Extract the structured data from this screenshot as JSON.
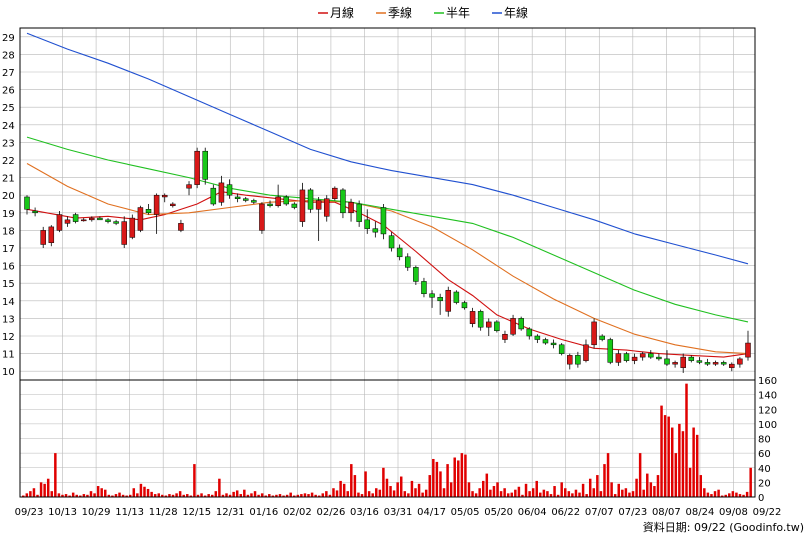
{
  "legend": [
    {
      "label": "月線",
      "color": "#d01010"
    },
    {
      "label": "季線",
      "color": "#e07020"
    },
    {
      "label": "半年",
      "color": "#20c020"
    },
    {
      "label": "年線",
      "color": "#2050d0"
    }
  ],
  "credit": "資料日期: 09/22  (Goodinfo.tw)",
  "colors": {
    "up": "#d81818",
    "down": "#18c818",
    "volume": "#e00000",
    "grid": "#b8b8b8"
  },
  "chart_data": {
    "type": "candlestick+volume",
    "x_tick_labels": [
      "09/23",
      "10/13",
      "10/29",
      "11/13",
      "11/28",
      "12/15",
      "12/31",
      "01/16",
      "02/02",
      "02/26",
      "03/16",
      "03/31",
      "04/17",
      "05/05",
      "05/20",
      "06/04",
      "06/22",
      "07/07",
      "07/23",
      "08/07",
      "08/24",
      "09/08",
      "09/22"
    ],
    "price_axis": {
      "min": 9.5,
      "max": 29.5,
      "ticks": [
        10,
        11,
        12,
        13,
        14,
        15,
        16,
        17,
        18,
        19,
        20,
        21,
        22,
        23,
        24,
        25,
        26,
        27,
        28,
        29
      ]
    },
    "volume_axis": {
      "min": 0,
      "max": 160,
      "ticks": [
        0,
        20,
        40,
        60,
        80,
        100,
        120,
        140,
        160
      ]
    },
    "ma_anchors": {
      "月線": [
        [
          0,
          19.2
        ],
        [
          6,
          18.7
        ],
        [
          10,
          18.8
        ],
        [
          14,
          18.6
        ],
        [
          17,
          18.9
        ],
        [
          21,
          19.5
        ],
        [
          24,
          20.2
        ],
        [
          27,
          20.0
        ],
        [
          31,
          19.8
        ],
        [
          35,
          19.6
        ],
        [
          38,
          19.6
        ],
        [
          41,
          19.0
        ],
        [
          44,
          18.3
        ],
        [
          48,
          16.8
        ],
        [
          52,
          15.2
        ],
        [
          55,
          14.3
        ],
        [
          58,
          13.2
        ],
        [
          62,
          12.4
        ],
        [
          66,
          11.8
        ],
        [
          70,
          11.3
        ],
        [
          74,
          11.2
        ],
        [
          78,
          11.0
        ],
        [
          82,
          10.9
        ],
        [
          86,
          10.8
        ],
        [
          89,
          11.0
        ]
      ],
      "季線": [
        [
          0,
          21.8
        ],
        [
          5,
          20.5
        ],
        [
          10,
          19.5
        ],
        [
          15,
          18.9
        ],
        [
          20,
          19.0
        ],
        [
          25,
          19.3
        ],
        [
          30,
          19.6
        ],
        [
          35,
          19.7
        ],
        [
          40,
          19.6
        ],
        [
          45,
          19.1
        ],
        [
          50,
          18.2
        ],
        [
          55,
          16.9
        ],
        [
          60,
          15.4
        ],
        [
          65,
          14.1
        ],
        [
          70,
          13.0
        ],
        [
          75,
          12.1
        ],
        [
          80,
          11.5
        ],
        [
          85,
          11.1
        ],
        [
          89,
          11.0
        ]
      ],
      "半年": [
        [
          0,
          23.3
        ],
        [
          5,
          22.6
        ],
        [
          10,
          22.0
        ],
        [
          15,
          21.5
        ],
        [
          20,
          21.0
        ],
        [
          25,
          20.4
        ],
        [
          30,
          20.0
        ],
        [
          35,
          19.8
        ],
        [
          40,
          19.6
        ],
        [
          45,
          19.2
        ],
        [
          50,
          18.8
        ],
        [
          55,
          18.4
        ],
        [
          60,
          17.6
        ],
        [
          65,
          16.6
        ],
        [
          70,
          15.6
        ],
        [
          75,
          14.6
        ],
        [
          80,
          13.8
        ],
        [
          85,
          13.2
        ],
        [
          89,
          12.8
        ]
      ],
      "年線": [
        [
          0,
          29.2
        ],
        [
          5,
          28.3
        ],
        [
          10,
          27.5
        ],
        [
          15,
          26.6
        ],
        [
          20,
          25.6
        ],
        [
          25,
          24.6
        ],
        [
          30,
          23.6
        ],
        [
          35,
          22.6
        ],
        [
          40,
          21.9
        ],
        [
          45,
          21.4
        ],
        [
          50,
          21.0
        ],
        [
          55,
          20.6
        ],
        [
          60,
          20.0
        ],
        [
          65,
          19.3
        ],
        [
          70,
          18.6
        ],
        [
          75,
          17.8
        ],
        [
          80,
          17.2
        ],
        [
          85,
          16.6
        ],
        [
          89,
          16.1
        ]
      ]
    },
    "candles": [
      {
        "o": 19.9,
        "h": 20.0,
        "l": 18.9,
        "c": 19.2
      },
      {
        "o": 19.1,
        "h": 19.3,
        "l": 18.8,
        "c": 19.0
      },
      {
        "o": 17.2,
        "h": 18.2,
        "l": 17.0,
        "c": 18.0
      },
      {
        "o": 17.3,
        "h": 18.3,
        "l": 17.1,
        "c": 18.2
      },
      {
        "o": 18.0,
        "h": 19.1,
        "l": 17.9,
        "c": 18.9
      },
      {
        "o": 18.4,
        "h": 18.8,
        "l": 18.2,
        "c": 18.6
      },
      {
        "o": 18.9,
        "h": 19.0,
        "l": 18.4,
        "c": 18.5
      },
      {
        "o": 18.6,
        "h": 18.7,
        "l": 18.5,
        "c": 18.6
      },
      {
        "o": 18.6,
        "h": 18.8,
        "l": 18.5,
        "c": 18.7
      },
      {
        "o": 18.7,
        "h": 18.8,
        "l": 18.6,
        "c": 18.6
      },
      {
        "o": 18.6,
        "h": 18.7,
        "l": 18.4,
        "c": 18.5
      },
      {
        "o": 18.5,
        "h": 18.6,
        "l": 18.3,
        "c": 18.4
      },
      {
        "o": 17.2,
        "h": 18.8,
        "l": 17.0,
        "c": 18.5
      },
      {
        "o": 17.6,
        "h": 18.9,
        "l": 17.5,
        "c": 18.7
      },
      {
        "o": 18.0,
        "h": 19.4,
        "l": 17.9,
        "c": 19.3
      },
      {
        "o": 19.2,
        "h": 19.5,
        "l": 18.9,
        "c": 19.0
      },
      {
        "o": 18.9,
        "h": 20.1,
        "l": 17.8,
        "c": 20.0
      },
      {
        "o": 19.9,
        "h": 20.1,
        "l": 19.6,
        "c": 20.0
      },
      {
        "o": 19.4,
        "h": 19.6,
        "l": 19.3,
        "c": 19.5
      },
      {
        "o": 18.0,
        "h": 18.6,
        "l": 17.9,
        "c": 18.4
      },
      {
        "o": 20.4,
        "h": 20.8,
        "l": 20.0,
        "c": 20.6
      },
      {
        "o": 20.6,
        "h": 22.7,
        "l": 20.4,
        "c": 22.5
      },
      {
        "o": 22.5,
        "h": 22.7,
        "l": 20.6,
        "c": 20.9
      },
      {
        "o": 20.4,
        "h": 20.6,
        "l": 19.4,
        "c": 19.5
      },
      {
        "o": 19.6,
        "h": 21.1,
        "l": 19.4,
        "c": 20.7
      },
      {
        "o": 20.6,
        "h": 20.9,
        "l": 19.8,
        "c": 20.0
      },
      {
        "o": 19.9,
        "h": 20.1,
        "l": 19.6,
        "c": 19.8
      },
      {
        "o": 19.8,
        "h": 19.9,
        "l": 19.6,
        "c": 19.7
      },
      {
        "o": 19.7,
        "h": 19.8,
        "l": 19.5,
        "c": 19.6
      },
      {
        "o": 18.0,
        "h": 19.6,
        "l": 17.8,
        "c": 19.5
      },
      {
        "o": 19.5,
        "h": 19.7,
        "l": 19.3,
        "c": 19.4
      },
      {
        "o": 19.4,
        "h": 20.6,
        "l": 19.3,
        "c": 19.9
      },
      {
        "o": 19.9,
        "h": 20.0,
        "l": 19.4,
        "c": 19.5
      },
      {
        "o": 19.5,
        "h": 19.6,
        "l": 19.2,
        "c": 19.3
      },
      {
        "o": 18.5,
        "h": 20.7,
        "l": 18.2,
        "c": 20.3
      },
      {
        "o": 20.3,
        "h": 20.4,
        "l": 19.0,
        "c": 19.2
      },
      {
        "o": 19.2,
        "h": 19.9,
        "l": 17.4,
        "c": 19.7
      },
      {
        "o": 18.8,
        "h": 20.0,
        "l": 18.5,
        "c": 19.8
      },
      {
        "o": 19.8,
        "h": 20.5,
        "l": 19.7,
        "c": 20.4
      },
      {
        "o": 20.3,
        "h": 20.4,
        "l": 18.7,
        "c": 19.0
      },
      {
        "o": 19.0,
        "h": 19.8,
        "l": 18.5,
        "c": 19.6
      },
      {
        "o": 19.5,
        "h": 19.7,
        "l": 18.2,
        "c": 18.5
      },
      {
        "o": 18.6,
        "h": 19.2,
        "l": 17.8,
        "c": 18.1
      },
      {
        "o": 18.1,
        "h": 18.5,
        "l": 17.6,
        "c": 17.9
      },
      {
        "o": 19.3,
        "h": 19.5,
        "l": 17.5,
        "c": 17.8
      },
      {
        "o": 17.7,
        "h": 17.9,
        "l": 16.8,
        "c": 17.0
      },
      {
        "o": 17.0,
        "h": 17.2,
        "l": 16.3,
        "c": 16.5
      },
      {
        "o": 16.5,
        "h": 16.7,
        "l": 15.7,
        "c": 15.9
      },
      {
        "o": 15.9,
        "h": 16.0,
        "l": 14.9,
        "c": 15.1
      },
      {
        "o": 15.1,
        "h": 15.3,
        "l": 14.2,
        "c": 14.4
      },
      {
        "o": 14.4,
        "h": 14.6,
        "l": 13.6,
        "c": 14.2
      },
      {
        "o": 14.2,
        "h": 14.4,
        "l": 13.2,
        "c": 14.0
      },
      {
        "o": 13.4,
        "h": 14.8,
        "l": 13.1,
        "c": 14.6
      },
      {
        "o": 14.5,
        "h": 14.6,
        "l": 13.8,
        "c": 13.9
      },
      {
        "o": 13.9,
        "h": 14.0,
        "l": 13.5,
        "c": 13.6
      },
      {
        "o": 12.7,
        "h": 13.6,
        "l": 12.5,
        "c": 13.4
      },
      {
        "o": 13.4,
        "h": 13.5,
        "l": 12.3,
        "c": 12.5
      },
      {
        "o": 12.5,
        "h": 13.0,
        "l": 12.0,
        "c": 12.8
      },
      {
        "o": 12.8,
        "h": 12.9,
        "l": 12.2,
        "c": 12.3
      },
      {
        "o": 11.8,
        "h": 12.3,
        "l": 11.6,
        "c": 12.1
      },
      {
        "o": 12.1,
        "h": 13.2,
        "l": 12.0,
        "c": 13.0
      },
      {
        "o": 13.0,
        "h": 13.1,
        "l": 12.3,
        "c": 12.4
      },
      {
        "o": 12.4,
        "h": 12.5,
        "l": 11.8,
        "c": 12.0
      },
      {
        "o": 12.0,
        "h": 12.1,
        "l": 11.6,
        "c": 11.8
      },
      {
        "o": 11.8,
        "h": 11.9,
        "l": 11.5,
        "c": 11.6
      },
      {
        "o": 11.6,
        "h": 11.8,
        "l": 11.3,
        "c": 11.5
      },
      {
        "o": 11.5,
        "h": 11.6,
        "l": 10.9,
        "c": 11.0
      },
      {
        "o": 10.4,
        "h": 11.0,
        "l": 10.1,
        "c": 10.9
      },
      {
        "o": 10.9,
        "h": 11.1,
        "l": 10.2,
        "c": 10.4
      },
      {
        "o": 10.6,
        "h": 11.8,
        "l": 10.5,
        "c": 11.5
      },
      {
        "o": 11.5,
        "h": 13.0,
        "l": 11.3,
        "c": 12.8
      },
      {
        "o": 12.0,
        "h": 12.1,
        "l": 11.7,
        "c": 11.8
      },
      {
        "o": 11.8,
        "h": 11.9,
        "l": 10.4,
        "c": 10.5
      },
      {
        "o": 10.5,
        "h": 11.2,
        "l": 10.3,
        "c": 11.0
      },
      {
        "o": 11.0,
        "h": 11.1,
        "l": 10.5,
        "c": 10.6
      },
      {
        "o": 10.6,
        "h": 11.0,
        "l": 10.4,
        "c": 10.8
      },
      {
        "o": 10.8,
        "h": 11.1,
        "l": 10.6,
        "c": 11.0
      },
      {
        "o": 11.0,
        "h": 11.2,
        "l": 10.7,
        "c": 10.8
      },
      {
        "o": 10.8,
        "h": 11.0,
        "l": 10.6,
        "c": 10.7
      },
      {
        "o": 10.7,
        "h": 11.2,
        "l": 10.3,
        "c": 10.4
      },
      {
        "o": 10.4,
        "h": 10.6,
        "l": 10.2,
        "c": 10.5
      },
      {
        "o": 10.2,
        "h": 11.0,
        "l": 9.9,
        "c": 10.8
      },
      {
        "o": 10.8,
        "h": 10.9,
        "l": 10.5,
        "c": 10.6
      },
      {
        "o": 10.6,
        "h": 10.8,
        "l": 10.4,
        "c": 10.5
      },
      {
        "o": 10.5,
        "h": 10.7,
        "l": 10.3,
        "c": 10.4
      },
      {
        "o": 10.4,
        "h": 10.6,
        "l": 10.3,
        "c": 10.5
      },
      {
        "o": 10.5,
        "h": 10.6,
        "l": 10.3,
        "c": 10.4
      },
      {
        "o": 10.2,
        "h": 10.5,
        "l": 10.0,
        "c": 10.4
      },
      {
        "o": 10.4,
        "h": 10.8,
        "l": 10.2,
        "c": 10.7
      },
      {
        "o": 10.8,
        "h": 12.3,
        "l": 10.6,
        "c": 11.6
      }
    ],
    "volume": [
      2,
      5,
      8,
      12,
      3,
      20,
      18,
      25,
      8,
      60,
      5,
      3,
      4,
      2,
      6,
      3,
      2,
      4,
      3,
      8,
      5,
      15,
      12,
      10,
      3,
      2,
      4,
      6,
      3,
      2,
      3,
      12,
      5,
      18,
      14,
      11,
      7,
      4,
      5,
      3,
      2,
      4,
      3,
      5,
      8,
      3,
      4,
      2,
      45,
      3,
      5,
      2,
      4,
      3,
      8,
      25,
      3,
      5,
      3,
      7,
      9,
      4,
      10,
      3,
      5,
      8,
      3,
      5,
      2,
      4,
      2,
      3,
      4,
      2,
      3,
      6,
      2,
      3,
      4,
      5,
      4,
      6,
      3,
      2,
      5,
      8,
      3,
      12,
      9,
      22,
      18,
      8,
      45,
      30,
      6,
      4,
      35,
      8,
      5,
      12,
      10,
      40,
      25,
      15,
      9,
      20,
      28,
      8,
      5,
      22,
      12,
      18,
      6,
      10,
      30,
      52,
      48,
      35,
      12,
      45,
      20,
      54,
      50,
      60,
      58,
      20,
      8,
      5,
      12,
      22,
      32,
      10,
      15,
      20,
      8,
      12,
      5,
      6,
      10,
      14,
      3,
      18,
      8,
      12,
      22,
      6,
      10,
      8,
      4,
      15,
      3,
      20,
      12,
      8,
      5,
      10,
      6,
      18,
      4,
      25,
      12,
      30,
      8,
      45,
      60,
      20,
      4,
      18,
      10,
      12,
      6,
      8,
      25,
      60,
      10,
      32,
      20,
      15,
      30,
      125,
      112,
      110,
      95,
      60,
      100,
      90,
      155,
      40,
      95,
      85,
      30,
      12,
      6,
      4,
      8,
      10,
      2,
      3,
      5,
      8,
      6,
      4,
      3,
      7,
      40
    ]
  }
}
